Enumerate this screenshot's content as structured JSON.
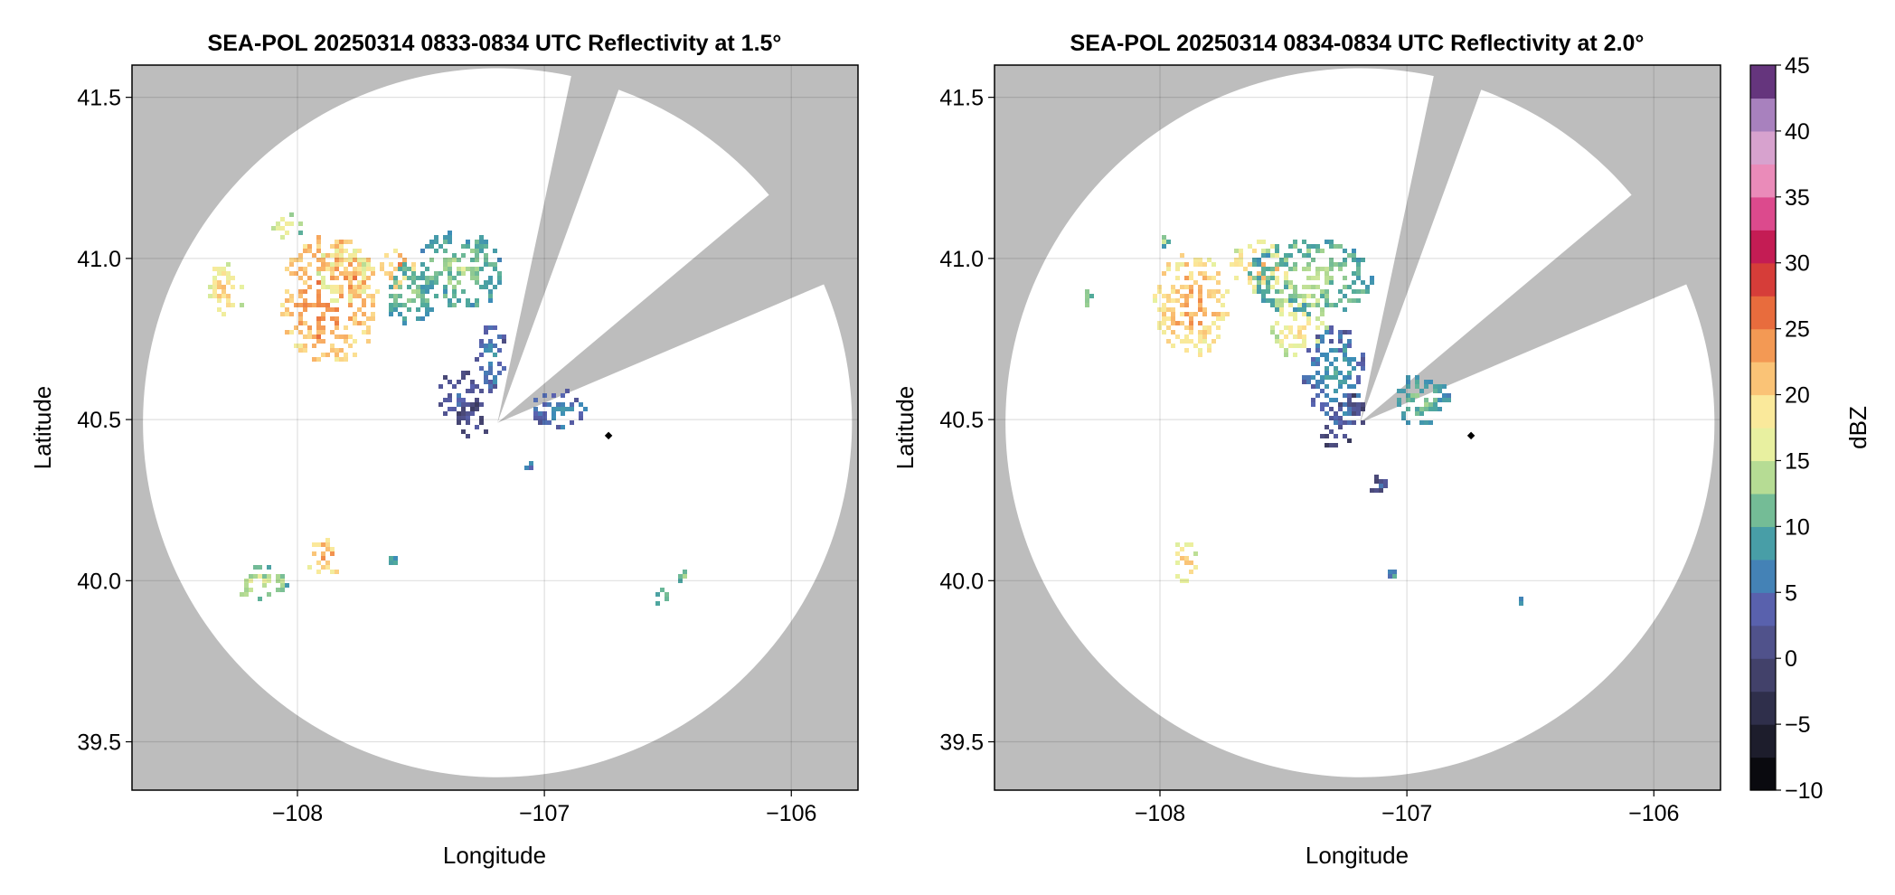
{
  "chart_data": [
    {
      "type": "heatmap",
      "title": "SEA-POL 20250314 0833-0834 UTC Reflectivity at 1.5°",
      "xlabel": "Longitude",
      "ylabel": "Latitude",
      "xlim": [
        -108.67,
        -105.73
      ],
      "ylim": [
        39.35,
        41.6
      ],
      "xticks": [
        -108,
        -107,
        -106
      ],
      "xtick_labels": [
        "−108",
        "−107",
        "−106"
      ],
      "yticks": [
        39.5,
        40.0,
        40.5,
        41.0,
        41.5
      ],
      "ytick_labels": [
        "39.5",
        "40.0",
        "40.5",
        "41.0",
        "41.5"
      ],
      "grid": true,
      "radar_site": [
        -107.19,
        40.49
      ],
      "coverage_radius_lat": 1.1,
      "blocked_sectors_bearing_deg": [
        [
          12,
          20
        ],
        [
          50,
          67
        ]
      ],
      "marker": [
        -106.74,
        40.45
      ],
      "cells": [
        {
          "lon": -107.88,
          "lat": 40.88,
          "rlon": 0.2,
          "rlat": 0.2,
          "dbz": 26
        },
        {
          "lon": -107.82,
          "lat": 40.96,
          "rlon": 0.1,
          "rlat": 0.1,
          "dbz": 22
        },
        {
          "lon": -107.6,
          "lat": 40.98,
          "rlon": 0.07,
          "rlat": 0.06,
          "dbz": 24
        },
        {
          "lon": -107.55,
          "lat": 40.9,
          "rlon": 0.1,
          "rlat": 0.1,
          "dbz": 14
        },
        {
          "lon": -107.35,
          "lat": 40.97,
          "rlon": 0.18,
          "rlat": 0.12,
          "dbz": 14
        },
        {
          "lon": -108.3,
          "lat": 40.91,
          "rlon": 0.07,
          "rlat": 0.08,
          "dbz": 22
        },
        {
          "lon": -108.05,
          "lat": 41.1,
          "rlon": 0.06,
          "rlat": 0.04,
          "dbz": 18
        },
        {
          "lon": -107.22,
          "lat": 40.7,
          "rlon": 0.06,
          "rlat": 0.1,
          "dbz": 9
        },
        {
          "lon": -107.35,
          "lat": 40.58,
          "rlon": 0.09,
          "rlat": 0.08,
          "dbz": 6
        },
        {
          "lon": -107.3,
          "lat": 40.5,
          "rlon": 0.06,
          "rlat": 0.06,
          "dbz": 4
        },
        {
          "lon": -106.95,
          "lat": 40.54,
          "rlon": 0.12,
          "rlat": 0.06,
          "dbz": 9
        },
        {
          "lon": -107.07,
          "lat": 40.37,
          "rlon": 0.03,
          "rlat": 0.02,
          "dbz": 10
        },
        {
          "lon": -107.9,
          "lat": 40.08,
          "rlon": 0.07,
          "rlat": 0.06,
          "dbz": 24
        },
        {
          "lon": -108.15,
          "lat": 40.0,
          "rlon": 0.1,
          "rlat": 0.05,
          "dbz": 17
        },
        {
          "lon": -107.62,
          "lat": 40.07,
          "rlon": 0.02,
          "rlat": 0.02,
          "dbz": 14
        },
        {
          "lon": -106.53,
          "lat": 39.96,
          "rlon": 0.04,
          "rlat": 0.02,
          "dbz": 15
        },
        {
          "lon": -106.45,
          "lat": 40.02,
          "rlon": 0.01,
          "rlat": 0.01,
          "dbz": 16
        }
      ]
    },
    {
      "type": "heatmap",
      "title": "SEA-POL 20250314 0834-0834 UTC Reflectivity at 2.0°",
      "xlabel": "Longitude",
      "ylabel": "Latitude",
      "xlim": [
        -108.67,
        -105.73
      ],
      "ylim": [
        39.35,
        41.6
      ],
      "xticks": [
        -108,
        -107,
        -106
      ],
      "xtick_labels": [
        "−108",
        "−107",
        "−106"
      ],
      "yticks": [
        39.5,
        40.0,
        40.5,
        41.0,
        41.5
      ],
      "ytick_labels": [
        "39.5",
        "40.0",
        "40.5",
        "41.0",
        "41.5"
      ],
      "grid": true,
      "radar_site": [
        -107.19,
        40.49
      ],
      "coverage_radius_lat": 1.1,
      "blocked_sectors_bearing_deg": [
        [
          12,
          20
        ],
        [
          50,
          67
        ]
      ],
      "marker": [
        -106.74,
        40.45
      ],
      "cells": [
        {
          "lon": -107.88,
          "lat": 40.87,
          "rlon": 0.15,
          "rlat": 0.16,
          "dbz": 24
        },
        {
          "lon": -107.6,
          "lat": 40.98,
          "rlon": 0.12,
          "rlat": 0.08,
          "dbz": 22
        },
        {
          "lon": -107.4,
          "lat": 40.95,
          "rlon": 0.25,
          "rlat": 0.12,
          "dbz": 15
        },
        {
          "lon": -107.45,
          "lat": 40.8,
          "rlon": 0.12,
          "rlat": 0.1,
          "dbz": 20
        },
        {
          "lon": -107.3,
          "lat": 40.65,
          "rlon": 0.12,
          "rlat": 0.15,
          "dbz": 10
        },
        {
          "lon": -107.25,
          "lat": 40.52,
          "rlon": 0.07,
          "rlat": 0.06,
          "dbz": 6
        },
        {
          "lon": -106.95,
          "lat": 40.57,
          "rlon": 0.12,
          "rlat": 0.08,
          "dbz": 13
        },
        {
          "lon": -107.3,
          "lat": 40.45,
          "rlon": 0.06,
          "rlat": 0.04,
          "dbz": 4
        },
        {
          "lon": -107.12,
          "lat": 40.3,
          "rlon": 0.04,
          "rlat": 0.04,
          "dbz": 5
        },
        {
          "lon": -107.9,
          "lat": 40.06,
          "rlon": 0.05,
          "rlat": 0.07,
          "dbz": 22
        },
        {
          "lon": -108.3,
          "lat": 40.88,
          "rlon": 0.02,
          "rlat": 0.02,
          "dbz": 16
        },
        {
          "lon": -108.0,
          "lat": 41.07,
          "rlon": 0.03,
          "rlat": 0.03,
          "dbz": 15
        },
        {
          "lon": -107.07,
          "lat": 40.03,
          "rlon": 0.01,
          "rlat": 0.01,
          "dbz": 10
        },
        {
          "lon": -106.55,
          "lat": 39.94,
          "rlon": 0.01,
          "rlat": 0.01,
          "dbz": 12
        }
      ]
    }
  ],
  "colorbar": {
    "label": "dBZ",
    "min": -10,
    "max": 45,
    "ticks": [
      45,
      40,
      35,
      30,
      25,
      20,
      15,
      10,
      5,
      0,
      -5,
      -10
    ],
    "tick_labels": [
      "45",
      "40",
      "35",
      "30",
      "25",
      "20",
      "15",
      "10",
      "5",
      "0",
      "−5",
      "−10"
    ],
    "stops": [
      {
        "dbz": -10,
        "color": "#000000"
      },
      {
        "dbz": -5,
        "color": "#26263b"
      },
      {
        "dbz": 0,
        "color": "#4b4a7a"
      },
      {
        "dbz": 4,
        "color": "#5a62b0"
      },
      {
        "dbz": 7,
        "color": "#3c8cb8"
      },
      {
        "dbz": 10,
        "color": "#51aa9b"
      },
      {
        "dbz": 13,
        "color": "#a6d590"
      },
      {
        "dbz": 16,
        "color": "#e6f1a0"
      },
      {
        "dbz": 19,
        "color": "#fce89a"
      },
      {
        "dbz": 22,
        "color": "#f9b66a"
      },
      {
        "dbz": 25,
        "color": "#ef8444"
      },
      {
        "dbz": 28,
        "color": "#dd4a32"
      },
      {
        "dbz": 31,
        "color": "#c2174e"
      },
      {
        "dbz": 34,
        "color": "#de4f93"
      },
      {
        "dbz": 37,
        "color": "#ee9fc6"
      },
      {
        "dbz": 40,
        "color": "#c7a4d4"
      },
      {
        "dbz": 43,
        "color": "#7d4f9e"
      },
      {
        "dbz": 45,
        "color": "#3c0a45"
      }
    ]
  },
  "colors": {
    "background": "#bdbdbd",
    "coverage": "#ffffff",
    "grid": "#000000",
    "marker": "#000000"
  }
}
